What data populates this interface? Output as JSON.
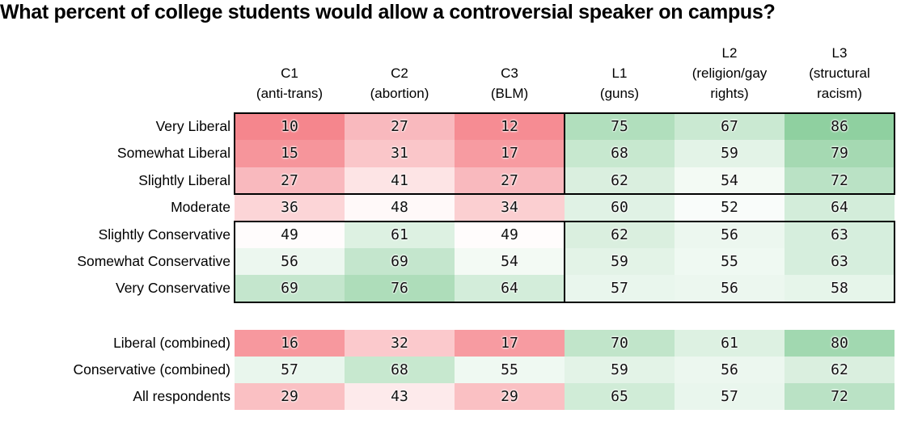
{
  "chart_data": {
    "type": "heatmap",
    "title": "What percent of college students would allow a controversial speaker on campus?",
    "columns": [
      {
        "id": "C1",
        "lines": [
          "C1",
          "(anti-trans)"
        ]
      },
      {
        "id": "C2",
        "lines": [
          "C2",
          "(abortion)"
        ]
      },
      {
        "id": "C3",
        "lines": [
          "C3",
          "(BLM)"
        ]
      },
      {
        "id": "L1",
        "lines": [
          "L1",
          "(guns)"
        ]
      },
      {
        "id": "L2",
        "lines": [
          "L2",
          "(religion/gay",
          "rights)"
        ]
      },
      {
        "id": "L3",
        "lines": [
          "L3",
          "(structural",
          "racism)"
        ]
      }
    ],
    "rows": [
      {
        "label": "Very Liberal",
        "values": [
          10,
          27,
          12,
          75,
          67,
          86
        ]
      },
      {
        "label": "Somewhat Liberal",
        "values": [
          15,
          31,
          17,
          68,
          59,
          79
        ]
      },
      {
        "label": "Slightly Liberal",
        "values": [
          27,
          41,
          27,
          62,
          54,
          72
        ]
      },
      {
        "label": "Moderate",
        "values": [
          36,
          48,
          34,
          60,
          52,
          64
        ]
      },
      {
        "label": "Slightly Conservative",
        "values": [
          49,
          61,
          49,
          62,
          56,
          63
        ]
      },
      {
        "label": "Somewhat Conservative",
        "values": [
          56,
          69,
          54,
          59,
          55,
          63
        ]
      },
      {
        "label": "Very Conservative",
        "values": [
          69,
          76,
          64,
          57,
          56,
          58
        ]
      }
    ],
    "summary_rows": [
      {
        "label": "Liberal (combined)",
        "values": [
          16,
          32,
          17,
          70,
          61,
          80
        ]
      },
      {
        "label": "Conservative (combined)",
        "values": [
          57,
          68,
          55,
          59,
          56,
          62
        ]
      },
      {
        "label": "All respondents",
        "values": [
          29,
          43,
          29,
          65,
          57,
          72
        ]
      }
    ],
    "color_scale": {
      "type": "diverging",
      "red": "#F4777F",
      "white": "#FFFFFF",
      "green": "#63BE7B",
      "red_at": 5,
      "mid_at": 50,
      "green_at": 100
    },
    "outlined_blocks": [
      {
        "row_start": 0,
        "row_end": 2,
        "col_start": 0,
        "col_end": 2
      },
      {
        "row_start": 0,
        "row_end": 2,
        "col_start": 3,
        "col_end": 5
      },
      {
        "row_start": 4,
        "row_end": 6,
        "col_start": 0,
        "col_end": 2
      },
      {
        "row_start": 4,
        "row_end": 6,
        "col_start": 3,
        "col_end": 5
      }
    ]
  }
}
